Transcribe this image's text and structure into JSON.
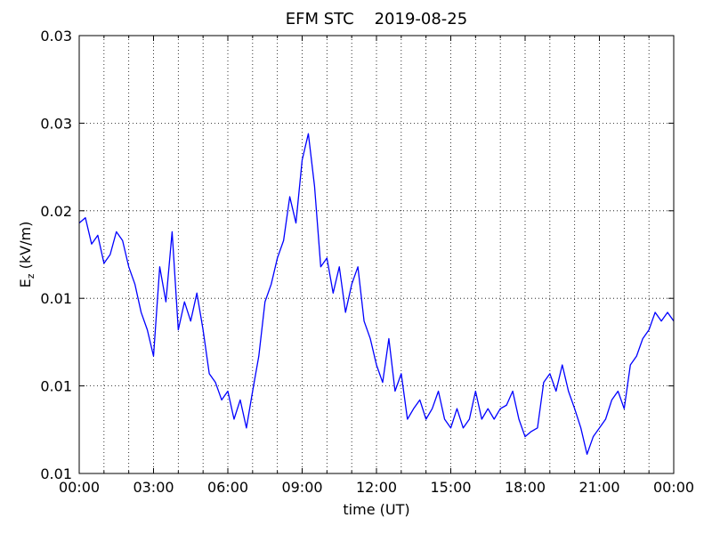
{
  "chart_data": {
    "type": "line",
    "title": "EFM STC    2019-08-25",
    "xlabel": "time (UT)",
    "ylabel": {
      "main": "E",
      "sub": "z",
      "unit": " (kV/m)"
    },
    "xlim": [
      0,
      24
    ],
    "ylim": [
      0.005,
      0.03
    ],
    "xticks": [
      {
        "value": 0,
        "label": "00:00"
      },
      {
        "value": 3,
        "label": "03:00"
      },
      {
        "value": 6,
        "label": "06:00"
      },
      {
        "value": 9,
        "label": "09:00"
      },
      {
        "value": 12,
        "label": "12:00"
      },
      {
        "value": 15,
        "label": "15:00"
      },
      {
        "value": 18,
        "label": "18:00"
      },
      {
        "value": 21,
        "label": "21:00"
      },
      {
        "value": 24,
        "label": "00:00"
      }
    ],
    "xminorticks": [
      1,
      2,
      4,
      5,
      7,
      8,
      10,
      11,
      13,
      14,
      16,
      17,
      19,
      20,
      22,
      23
    ],
    "yticks": [
      {
        "value": 0.005,
        "label": "0.01"
      },
      0.01,
      {
        "value": 0.015,
        "label": "0.01"
      },
      0.02,
      {
        "value": 0.025,
        "label": "0.03"
      },
      0.03
    ],
    "grid": true,
    "x": [
      0,
      0.25,
      0.5,
      0.75,
      1,
      1.25,
      1.5,
      1.75,
      2,
      2.25,
      2.5,
      2.75,
      3,
      3.25,
      3.5,
      3.75,
      4,
      4.25,
      4.5,
      4.75,
      5,
      5.25,
      5.5,
      5.75,
      6,
      6.25,
      6.5,
      6.75,
      7,
      7.25,
      7.5,
      7.75,
      8,
      8.25,
      8.5,
      8.75,
      9,
      9.25,
      9.5,
      9.75,
      10,
      10.25,
      10.5,
      10.75,
      11,
      11.25,
      11.5,
      11.75,
      12,
      12.25,
      12.5,
      12.75,
      13,
      13.25,
      13.5,
      13.75,
      14,
      14.25,
      14.5,
      14.75,
      15,
      15.25,
      15.5,
      15.75,
      16,
      16.25,
      16.5,
      16.75,
      17,
      17.25,
      17.5,
      17.75,
      18,
      18.25,
      18.5,
      18.75,
      19,
      19.25,
      19.5,
      19.75,
      20,
      20.25,
      20.5,
      20.75,
      21,
      21.25,
      21.5,
      21.75,
      22,
      22.25,
      22.5,
      22.75,
      23,
      23.25,
      23.5,
      23.75,
      24
    ],
    "series": [
      {
        "color": "#0000ff",
        "values": [
          0.0193,
          0.0196,
          0.0181,
          0.0186,
          0.017,
          0.0175,
          0.0188,
          0.0183,
          0.0168,
          0.0158,
          0.0142,
          0.0132,
          0.0117,
          0.0168,
          0.0148,
          0.0188,
          0.0132,
          0.0148,
          0.0137,
          0.0153,
          0.0132,
          0.0107,
          0.0102,
          0.0092,
          0.0097,
          0.0081,
          0.0092,
          0.0076,
          0.0097,
          0.0117,
          0.0148,
          0.0158,
          0.0173,
          0.0183,
          0.0208,
          0.0193,
          0.0229,
          0.0244,
          0.0214,
          0.0168,
          0.0173,
          0.0153,
          0.0168,
          0.0142,
          0.0158,
          0.0168,
          0.0137,
          0.0127,
          0.0112,
          0.0102,
          0.0127,
          0.0097,
          0.0107,
          0.0081,
          0.0087,
          0.0092,
          0.0081,
          0.0087,
          0.0097,
          0.0081,
          0.0076,
          0.0087,
          0.0076,
          0.0081,
          0.0097,
          0.0081,
          0.0087,
          0.0081,
          0.0087,
          0.0089,
          0.0097,
          0.0081,
          0.0071,
          0.0074,
          0.0076,
          0.0102,
          0.0107,
          0.0097,
          0.0112,
          0.0097,
          0.0087,
          0.0076,
          0.0061,
          0.0071,
          0.0076,
          0.0081,
          0.0092,
          0.0097,
          0.0087,
          0.0112,
          0.0117,
          0.0127,
          0.0132,
          0.0142,
          0.0137,
          0.0142,
          0.0137
        ]
      }
    ]
  }
}
